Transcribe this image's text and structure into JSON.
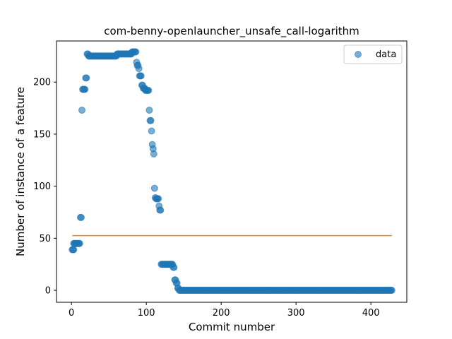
{
  "chart_data": {
    "type": "scatter",
    "title": "com-benny-openlauncher_unsafe_call-logarithm",
    "xlabel": "Commit number",
    "ylabel": "Number of instance of a feature",
    "xlim": [
      -20,
      448
    ],
    "ylim": [
      -11.5,
      239.5
    ],
    "xticks": [
      0,
      100,
      200,
      300,
      400
    ],
    "yticks": [
      0,
      50,
      100,
      150,
      200
    ],
    "legend": {
      "position": "top-right",
      "entries": [
        "data"
      ]
    },
    "grid": false,
    "colors": {
      "data": "#1f77b4",
      "fit": "#ff7f0e"
    },
    "series": [
      {
        "name": "data",
        "kind": "scatter",
        "segments": [
          [
            1,
            3,
            39,
            39
          ],
          [
            3,
            11,
            45,
            45
          ],
          [
            12,
            13,
            70,
            70
          ],
          [
            14,
            14,
            173,
            173
          ],
          [
            15,
            18,
            193,
            193
          ],
          [
            19,
            20,
            204,
            204
          ],
          [
            21,
            22,
            227,
            227
          ],
          [
            23,
            60,
            225,
            225
          ],
          [
            61,
            80,
            227,
            227
          ],
          [
            81,
            86,
            229,
            229
          ],
          [
            87,
            87,
            219,
            219
          ],
          [
            88,
            89,
            216,
            216
          ],
          [
            90,
            90,
            213,
            213
          ],
          [
            91,
            93,
            206,
            206
          ],
          [
            94,
            95,
            197,
            197
          ],
          [
            96,
            98,
            194,
            194
          ],
          [
            99,
            103,
            192,
            192
          ],
          [
            104,
            104,
            173,
            173
          ],
          [
            105,
            106,
            163,
            163
          ],
          [
            107,
            107,
            153,
            153
          ],
          [
            108,
            108,
            140,
            140
          ],
          [
            109,
            109,
            136,
            136
          ],
          [
            110,
            110,
            131,
            131
          ],
          [
            111,
            111,
            98,
            98
          ],
          [
            112,
            112,
            89,
            89
          ],
          [
            113,
            116,
            88,
            88
          ],
          [
            117,
            117,
            81,
            81
          ],
          [
            118,
            119,
            77,
            77
          ],
          [
            120,
            135,
            25,
            25
          ],
          [
            136,
            137,
            22,
            22
          ],
          [
            138,
            139,
            10,
            10
          ],
          [
            140,
            141,
            7,
            7
          ],
          [
            142,
            143,
            2,
            2
          ],
          [
            144,
            428,
            0,
            0
          ]
        ]
      },
      {
        "name": "",
        "kind": "line",
        "x": [
          1,
          428
        ],
        "y": [
          52.5,
          52.5
        ]
      }
    ]
  }
}
